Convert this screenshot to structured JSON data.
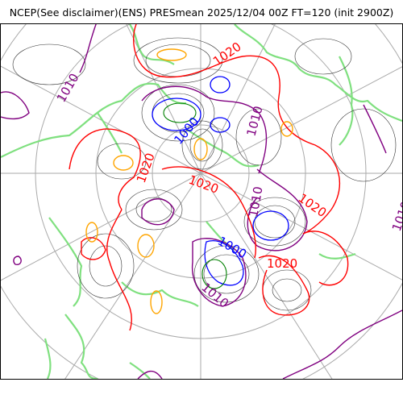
{
  "title": "NCEP(See disclaimer)(ENS) PRESmean 2025/12/04 00Z FT=120 (init 2900Z)",
  "colors": {
    "isobar_1020": "#ff0000",
    "isobar_1010": "#800080",
    "isobar_1000": "#0000ff",
    "isobar_fine": "#333333",
    "high_center": "#ffa500",
    "coastline": "#7fe07f",
    "graticule": "#aaaaaa",
    "low_deep": "#008000"
  },
  "contour_labels": [
    {
      "text": "1010",
      "color": "#800080"
    },
    {
      "text": "1020",
      "color": "#ff0000"
    },
    {
      "text": "1000",
      "color": "#0000ff"
    },
    {
      "text": "1010",
      "color": "#800080"
    },
    {
      "text": "1020",
      "color": "#ff0000"
    },
    {
      "text": "1020",
      "color": "#ff0000"
    },
    {
      "text": "1010",
      "color": "#800080"
    },
    {
      "text": "1020",
      "color": "#ff0000"
    },
    {
      "text": "1000",
      "color": "#0000ff"
    },
    {
      "text": "1020",
      "color": "#ff0000"
    },
    {
      "text": "1010",
      "color": "#800080"
    },
    {
      "text": "1010",
      "color": "#800080"
    }
  ]
}
